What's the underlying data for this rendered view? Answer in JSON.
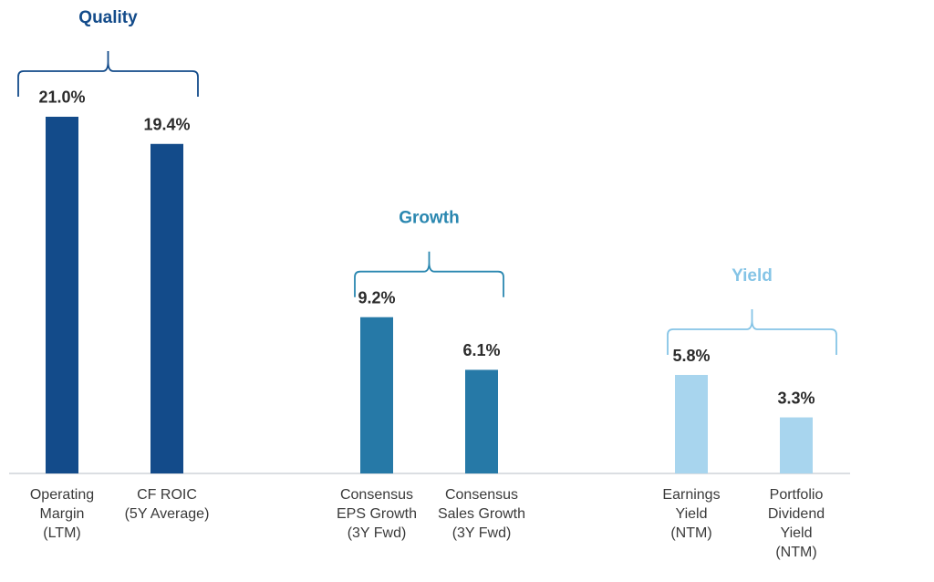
{
  "chart_data": {
    "type": "bar",
    "groups": [
      {
        "name": "Quality",
        "color": "#134b8a",
        "label_color": "#134b8a",
        "categories": [
          [
            "Operating",
            "Margin",
            "(LTM)"
          ],
          [
            "CF ROIC",
            "(5Y Average)"
          ]
        ],
        "values": [
          21.0,
          19.4
        ],
        "value_labels": [
          "21.0%",
          "19.4%"
        ]
      },
      {
        "name": "Growth",
        "color": "#2679a7",
        "label_color": "#2a87b0",
        "categories": [
          [
            "Consensus",
            "EPS Growth",
            "(3Y Fwd)"
          ],
          [
            "Consensus",
            "Sales Growth",
            "(3Y Fwd)"
          ]
        ],
        "values": [
          9.2,
          6.1
        ],
        "value_labels": [
          "9.2%",
          "6.1%"
        ]
      },
      {
        "name": "Yield",
        "color": "#a8d5ee",
        "label_color": "#85c4e6",
        "categories": [
          [
            "Earnings",
            "Yield",
            "(NTM)"
          ],
          [
            "Portfolio",
            "Dividend",
            "Yield",
            "(NTM)"
          ]
        ],
        "values": [
          5.8,
          3.3
        ],
        "value_labels": [
          "5.8%",
          "3.3%"
        ]
      }
    ]
  }
}
